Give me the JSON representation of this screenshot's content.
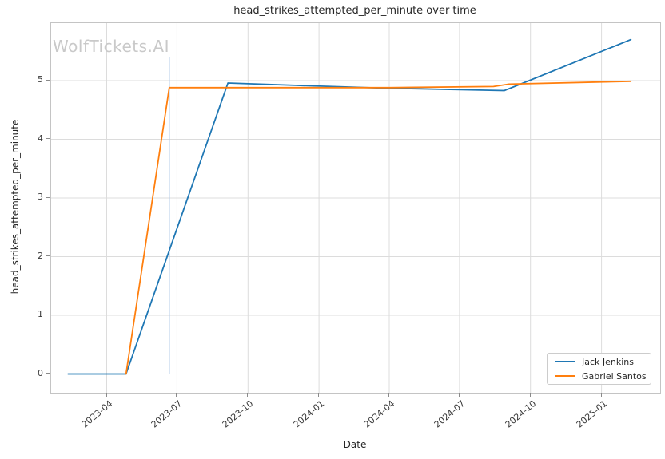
{
  "title": "head_strikes_attempted_per_minute over time",
  "watermark": "WolfTickets.AI",
  "axes": {
    "xlabel": "Date",
    "ylabel": "head_strikes_attempted_per_minute"
  },
  "legend": {
    "items": [
      {
        "label": "Jack Jenkins",
        "color": "#1f77b4"
      },
      {
        "label": "Gabriel Santos",
        "color": "#ff7f0e"
      }
    ]
  },
  "colors": {
    "grid": "#dcdcdc",
    "spine": "#c4c4c4",
    "tick_text": "#3a3a3a",
    "title_text": "#262626",
    "watermark": "#c9c9c9",
    "series_blue": "#1f77b4",
    "series_orange": "#ff7f0e",
    "vline": "#aec7e8"
  },
  "chart_data": {
    "type": "line",
    "title": "head_strikes_attempted_per_minute over time",
    "xlabel": "Date",
    "ylabel": "head_strikes_attempted_per_minute",
    "x_ticks": [
      "2023-04",
      "2023-07",
      "2023-10",
      "2024-01",
      "2024-04",
      "2024-07",
      "2024-10",
      "2025-01"
    ],
    "y_ticks": [
      0,
      1,
      2,
      3,
      4,
      5
    ],
    "xlim": [
      "2023-01-19",
      "2025-03-18"
    ],
    "ylim": [
      -0.32,
      5.98
    ],
    "grid": true,
    "legend_position": "lower right",
    "series": [
      {
        "name": "Jack Jenkins",
        "color": "#1f77b4",
        "points": [
          [
            "2023-02-10",
            0.0
          ],
          [
            "2023-04-26",
            0.0
          ],
          [
            "2023-09-05",
            4.96
          ],
          [
            "2023-12-01",
            4.92
          ],
          [
            "2024-04-01",
            4.87
          ],
          [
            "2024-08-28",
            4.83
          ],
          [
            "2025-02-08",
            5.7
          ]
        ]
      },
      {
        "name": "Gabriel Santos",
        "color": "#ff7f0e",
        "points": [
          [
            "2023-04-26",
            0.0
          ],
          [
            "2023-06-21",
            4.88
          ],
          [
            "2024-04-01",
            4.88
          ],
          [
            "2024-08-14",
            4.9
          ],
          [
            "2024-09-03",
            4.94
          ],
          [
            "2025-02-08",
            4.99
          ]
        ]
      }
    ],
    "annotations": [
      {
        "type": "vline",
        "x": "2023-06-21",
        "y0": 0.0,
        "y1": 5.4,
        "color": "#aec7e8"
      }
    ]
  }
}
